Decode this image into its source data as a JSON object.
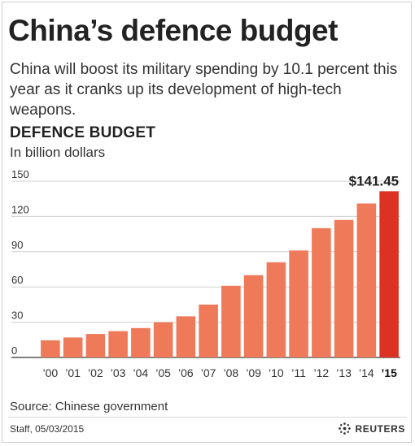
{
  "header": {
    "title": "China’s defence budget",
    "subtitle": "China will boost its military spending by 10.1 percent this year as it cranks up its development of high-tech weapons."
  },
  "section": {
    "title": "DEFENCE BUDGET",
    "unit": "In billion dollars"
  },
  "footer": {
    "source": "Source: Chinese government",
    "credit": "Staff, 05/03/2015",
    "logo_text": "REUTERS"
  },
  "colors": {
    "bar": "#ee7a5a",
    "highlight": "#dc3223",
    "grid": "#d0d0d0",
    "axis": "#333333"
  },
  "chart_data": {
    "type": "bar",
    "title": "DEFENCE BUDGET",
    "ylabel": "In billion dollars",
    "xlabel": "",
    "categories": [
      "’00",
      "’01",
      "’02",
      "’03",
      "’04",
      "’05",
      "’06",
      "’07",
      "’08",
      "’09",
      "’10",
      "’11",
      "’12",
      "’13",
      "’14",
      "’15"
    ],
    "values": [
      14.6,
      17.0,
      20.0,
      22.4,
      25.0,
      29.9,
      35.0,
      45.0,
      61.0,
      70.0,
      81.0,
      91.0,
      110.0,
      117.0,
      131.0,
      141.45
    ],
    "highlight_index": 15,
    "highlight_label": "$141.45",
    "ylim": [
      0,
      150
    ],
    "yticks": [
      0,
      30,
      60,
      90,
      120,
      150
    ],
    "grid": true,
    "legend": "none"
  }
}
